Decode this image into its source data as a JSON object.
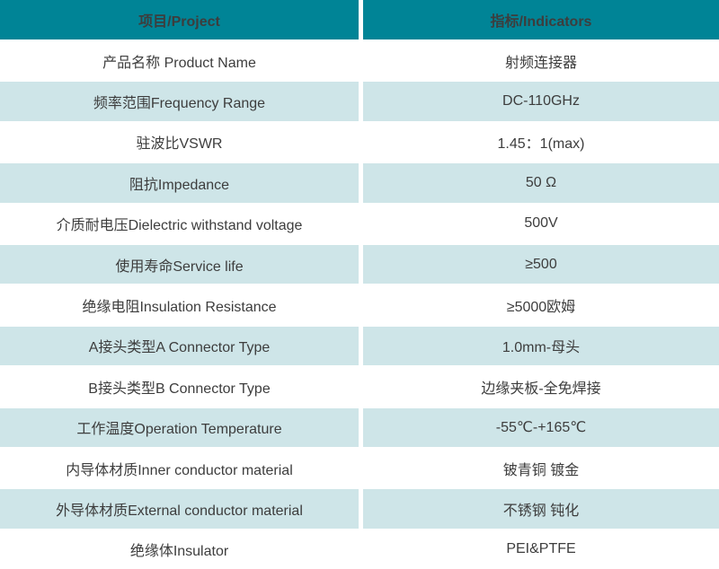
{
  "table": {
    "title": "RF connector specification table",
    "columns": [
      {
        "label": "项目/Project"
      },
      {
        "label": "指标/Indicators"
      }
    ],
    "rows": [
      {
        "project": "产品名称 Product Name",
        "indicator": "射频连接器"
      },
      {
        "project": "频率范围Frequency Range",
        "indicator": "DC-110GHz"
      },
      {
        "project": "驻波比VSWR",
        "indicator": "1.45：1(max)"
      },
      {
        "project": "阻抗Impedance",
        "indicator": "50 Ω"
      },
      {
        "project": "介质耐电压Dielectric withstand voltage",
        "indicator": "500V"
      },
      {
        "project": "使用寿命Service life",
        "indicator": "≥500"
      },
      {
        "project": "绝缘电阻Insulation Resistance",
        "indicator": "≥5000欧姆"
      },
      {
        "project": "A接头类型A Connector Type",
        "indicator": "1.0mm-母头"
      },
      {
        "project": "B接头类型B Connector Type",
        "indicator": "边缘夹板-全免焊接"
      },
      {
        "project": "工作温度Operation Temperature",
        "indicator": "-55℃-+165℃"
      },
      {
        "project": "内导体材质Inner conductor material",
        "indicator": "铍青铜 镀金"
      },
      {
        "project": "外导体材质External conductor material",
        "indicator": "不锈钢 钝化"
      },
      {
        "project": "绝缘体Insulator",
        "indicator": "PEI&PTFE"
      }
    ]
  },
  "colors": {
    "header_bg": "#008496",
    "header_text": "#ffffff",
    "row_alt_bg": "#cee5e8",
    "row_bg": "#ffffff",
    "body_text": "#3d3d3d"
  }
}
